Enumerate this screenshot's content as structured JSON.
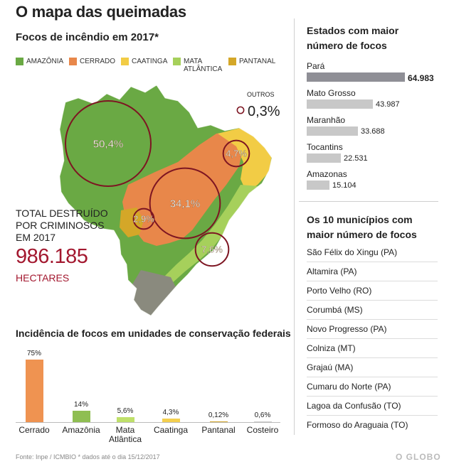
{
  "title": "O mapa das queimadas",
  "focos": {
    "subtitle": "Focos de incêndio em 2017*",
    "legend": [
      {
        "label": "AMAZÔNIA",
        "color": "#6aa944"
      },
      {
        "label": "CERRADO",
        "color": "#e8874a"
      },
      {
        "label": "CAATINGA",
        "color": "#f2cc45"
      },
      {
        "label": "MATA ATLÂNTICA",
        "label_line1": "MATA",
        "label_line2": "ATLÂNTICA",
        "color": "#a6d05b"
      },
      {
        "label": "PANTANAL",
        "color": "#d4a728"
      }
    ],
    "outros_label": "OUTROS"
  },
  "total": {
    "label_line1": "TOTAL DESTRUÍDO",
    "label_line2": "POR CRIMINOSOS",
    "label_line3": "EM 2017",
    "value": "986.185",
    "unit": "HECTARES"
  },
  "incidencia": {
    "title": "Incidência de focos em unidades de conservação federais"
  },
  "estados": {
    "title_line1": "Estados com maior",
    "title_line2": "número de focos",
    "highlight_color": "#8f8f96"
  },
  "municipios": {
    "title_line1": "Os 10 municípios com",
    "title_line2": "maior número de focos",
    "items": [
      "São Félix do Xingu (PA)",
      "Altamira (PA)",
      "Porto Velho (RO)",
      "Corumbá (MS)",
      "Novo Progresso (PA)",
      "Colniza (MT)",
      "Grajaú (MA)",
      "Cumaru do Norte (PA)",
      "Lagoa da Confusão (TO)",
      "Formoso do Araguaia (TO)"
    ]
  },
  "footer": "Fonte: Inpe / ICMBIO * dados até o dia 15/12/2017",
  "brand": "O GLOBO",
  "chart_data": [
    {
      "type": "pie",
      "title": "Focos de incêndio em 2017*",
      "categories": [
        "Amazônia",
        "Cerrado",
        "Caatinga",
        "Mata Atlântica",
        "Pantanal",
        "Outros"
      ],
      "values": [
        50.4,
        34.1,
        4.7,
        7.6,
        2.9,
        0.3
      ],
      "labels": [
        "50,4%",
        "34,1%",
        "4,7%",
        "7,6%",
        "2,9%",
        "0,3%"
      ],
      "unit": "%"
    },
    {
      "type": "bar",
      "orientation": "horizontal",
      "title": "Estados com maior número de focos",
      "categories": [
        "Pará",
        "Mato Grosso",
        "Maranhão",
        "Tocantins",
        "Amazonas"
      ],
      "values": [
        64983,
        43987,
        33688,
        22531,
        15104
      ],
      "labels": [
        "64.983",
        "43.987",
        "33.688",
        "22.531",
        "15.104"
      ],
      "xlim": [
        0,
        64983
      ]
    },
    {
      "type": "bar",
      "title": "Incidência de focos em unidades de conservação federais",
      "categories": [
        "Cerrado",
        "Amazônia",
        "Mata Atlântica",
        "Caatinga",
        "Pantanal",
        "Costeiro"
      ],
      "category_lines": [
        [
          "Cerrado"
        ],
        [
          "Amazônia"
        ],
        [
          "Mata",
          "Atlântica"
        ],
        [
          "Caatinga"
        ],
        [
          "Pantanal"
        ],
        [
          "Costeiro"
        ]
      ],
      "values": [
        75,
        14,
        5.6,
        4.3,
        0.12,
        0.6
      ],
      "labels": [
        "75%",
        "14%",
        "5,6%",
        "4,3%",
        "0,12%",
        "0,6%"
      ],
      "colors": [
        "#ef9351",
        "#8fbe52",
        "#bfe06a",
        "#f4cf4e",
        "#d2a52a",
        "#cccccc"
      ],
      "ylim": [
        0,
        75
      ],
      "unit": "%"
    }
  ]
}
